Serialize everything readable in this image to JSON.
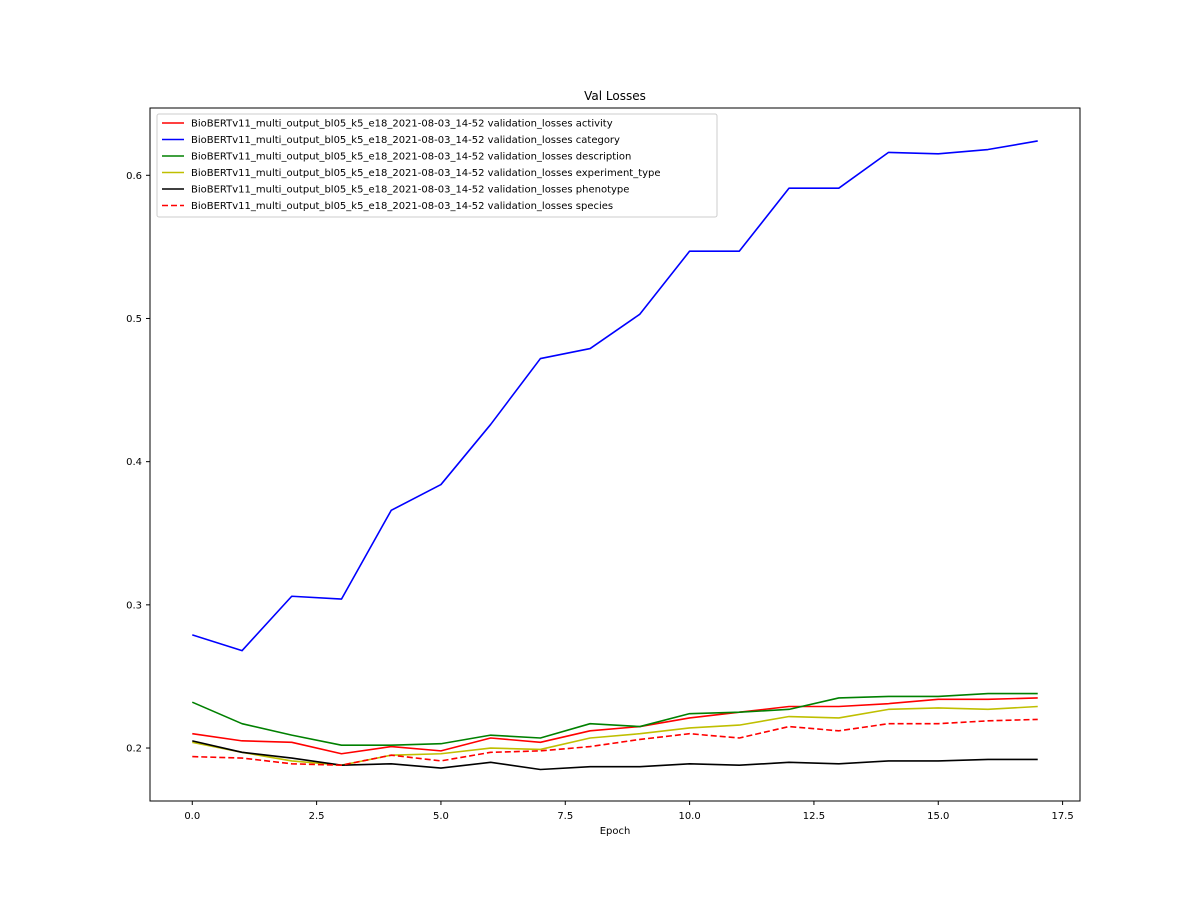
{
  "chart_data": {
    "type": "line",
    "title": "Val Losses",
    "xlabel": "Epoch",
    "ylabel": "",
    "xlim": [
      -0.85,
      17.85
    ],
    "ylim": [
      0.163,
      0.647
    ],
    "xticks": [
      0.0,
      2.5,
      5.0,
      7.5,
      10.0,
      12.5,
      15.0,
      17.5
    ],
    "xtick_labels": [
      "0.0",
      "2.5",
      "5.0",
      "7.5",
      "10.0",
      "12.5",
      "15.0",
      "17.5"
    ],
    "yticks": [
      0.2,
      0.3,
      0.4,
      0.5,
      0.6
    ],
    "ytick_labels": [
      "0.2",
      "0.3",
      "0.4",
      "0.5",
      "0.6"
    ],
    "grid": false,
    "legend_position": "top-left",
    "x": [
      0,
      1,
      2,
      3,
      4,
      5,
      6,
      7,
      8,
      9,
      10,
      11,
      12,
      13,
      14,
      15,
      16,
      17
    ],
    "series": [
      {
        "name": "BioBERTv11_multi_output_bl05_k5_e18_2021-08-03_14-52 validation_losses activity",
        "color": "#ff0000",
        "dash": "solid",
        "values": [
          0.21,
          0.205,
          0.204,
          0.196,
          0.201,
          0.198,
          0.207,
          0.204,
          0.212,
          0.215,
          0.221,
          0.225,
          0.229,
          0.229,
          0.231,
          0.234,
          0.234,
          0.235
        ]
      },
      {
        "name": "BioBERTv11_multi_output_bl05_k5_e18_2021-08-03_14-52 validation_losses category",
        "color": "#0000ff",
        "dash": "solid",
        "values": [
          0.279,
          0.268,
          0.306,
          0.304,
          0.366,
          0.384,
          0.426,
          0.472,
          0.479,
          0.503,
          0.547,
          0.547,
          0.591,
          0.591,
          0.616,
          0.615,
          0.618,
          0.624
        ]
      },
      {
        "name": "BioBERTv11_multi_output_bl05_k5_e18_2021-08-03_14-52 validation_losses description",
        "color": "#008000",
        "dash": "solid",
        "values": [
          0.232,
          0.217,
          0.209,
          0.202,
          0.202,
          0.203,
          0.209,
          0.207,
          0.217,
          0.215,
          0.224,
          0.225,
          0.227,
          0.235,
          0.236,
          0.236,
          0.238,
          0.238
        ]
      },
      {
        "name": "BioBERTv11_multi_output_bl05_k5_e18_2021-08-03_14-52 validation_losses experiment_type",
        "color": "#bfbf00",
        "dash": "solid",
        "values": [
          0.204,
          0.197,
          0.191,
          0.188,
          0.195,
          0.196,
          0.2,
          0.199,
          0.207,
          0.21,
          0.214,
          0.216,
          0.222,
          0.221,
          0.227,
          0.228,
          0.227,
          0.229
        ]
      },
      {
        "name": "BioBERTv11_multi_output_bl05_k5_e18_2021-08-03_14-52 validation_losses phenotype",
        "color": "#000000",
        "dash": "solid",
        "values": [
          0.205,
          0.197,
          0.193,
          0.188,
          0.189,
          0.186,
          0.19,
          0.185,
          0.187,
          0.187,
          0.189,
          0.188,
          0.19,
          0.189,
          0.191,
          0.191,
          0.192,
          0.192
        ]
      },
      {
        "name": "BioBERTv11_multi_output_bl05_k5_e18_2021-08-03_14-52 validation_losses species",
        "color": "#ff0000",
        "dash": "dashed",
        "values": [
          0.194,
          0.193,
          0.189,
          0.188,
          0.195,
          0.191,
          0.197,
          0.198,
          0.201,
          0.206,
          0.21,
          0.207,
          0.215,
          0.212,
          0.217,
          0.217,
          0.219,
          0.22
        ]
      }
    ]
  }
}
